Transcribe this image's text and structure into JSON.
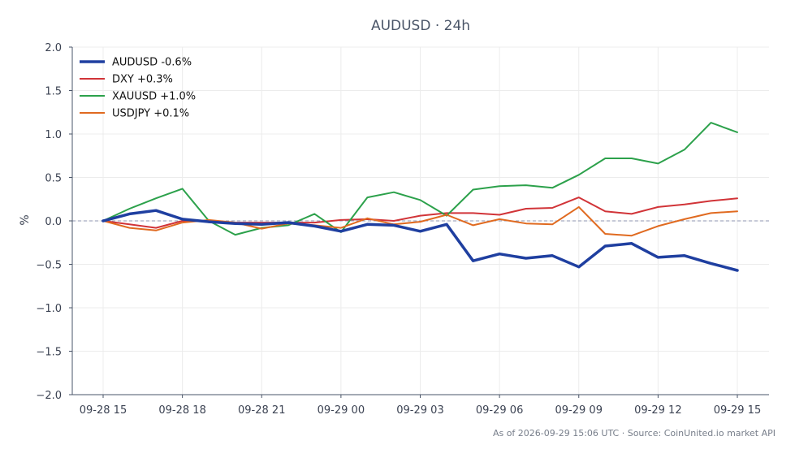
{
  "chart_data": {
    "type": "line",
    "title": "AUDUSD · 24h",
    "xlabel": "",
    "ylabel": "%",
    "ylim": [
      -2.0,
      2.0
    ],
    "yticks": [
      "2.0",
      "1.5",
      "1.0",
      "0.5",
      "0.0",
      "−0.5",
      "−1.0",
      "−1.5",
      "−2.0"
    ],
    "ytick_values": [
      2.0,
      1.5,
      1.0,
      0.5,
      0.0,
      -0.5,
      -1.0,
      -1.5,
      -2.0
    ],
    "x": [
      "2026-09-28 15:00",
      "2026-09-28 16:00",
      "2026-09-28 17:00",
      "2026-09-28 18:00",
      "2026-09-28 19:00",
      "2026-09-28 20:00",
      "2026-09-28 21:00",
      "2026-09-28 22:00",
      "2026-09-28 23:00",
      "2026-09-29 00:00",
      "2026-09-29 01:00",
      "2026-09-29 02:00",
      "2026-09-29 03:00",
      "2026-09-29 04:00",
      "2026-09-29 05:00",
      "2026-09-29 06:00",
      "2026-09-29 07:00",
      "2026-09-29 08:00",
      "2026-09-29 09:00",
      "2026-09-29 10:00",
      "2026-09-29 11:00",
      "2026-09-29 12:00",
      "2026-09-29 13:00",
      "2026-09-29 14:00",
      "2026-09-29 15:00"
    ],
    "xticks": [
      "09-28 15",
      "09-28 18",
      "09-28 21",
      "09-29 00",
      "09-29 03",
      "09-29 06",
      "09-29 09",
      "09-29 12",
      "09-29 15"
    ],
    "xtick_index": [
      0,
      3,
      6,
      9,
      12,
      15,
      18,
      21,
      24
    ],
    "reference_line": 0.0,
    "grid": true,
    "legend_position": "top-left",
    "series": [
      {
        "name": "AUDUSD -0.6%",
        "color": "#1f3fa0",
        "values": [
          0.0,
          0.08,
          0.12,
          0.02,
          -0.01,
          -0.03,
          -0.04,
          -0.02,
          -0.06,
          -0.12,
          -0.04,
          -0.05,
          -0.12,
          -0.04,
          -0.46,
          -0.38,
          -0.43,
          -0.4,
          -0.53,
          -0.29,
          -0.26,
          -0.42,
          -0.4,
          -0.49,
          -0.57
        ]
      },
      {
        "name": "DXY +0.3%",
        "color": "#d13438",
        "values": [
          0.0,
          -0.04,
          -0.08,
          0.0,
          0.0,
          -0.02,
          -0.02,
          -0.02,
          -0.02,
          0.01,
          0.02,
          0.0,
          0.06,
          0.09,
          0.09,
          0.07,
          0.14,
          0.15,
          0.27,
          0.11,
          0.08,
          0.16,
          0.19,
          0.23,
          0.26
        ]
      },
      {
        "name": "XAUUSD +1.0%",
        "color": "#2ca14b",
        "values": [
          0.0,
          0.14,
          0.26,
          0.37,
          0.0,
          -0.16,
          -0.08,
          -0.05,
          0.08,
          -0.13,
          0.27,
          0.33,
          0.24,
          0.06,
          0.36,
          0.4,
          0.41,
          0.38,
          0.53,
          0.72,
          0.72,
          0.66,
          0.82,
          1.13,
          1.02
        ]
      },
      {
        "name": "USDJPY +0.1%",
        "color": "#e06a20",
        "values": [
          0.0,
          -0.08,
          -0.11,
          -0.02,
          0.01,
          -0.02,
          -0.09,
          -0.03,
          -0.05,
          -0.08,
          0.03,
          -0.04,
          -0.01,
          0.07,
          -0.05,
          0.02,
          -0.03,
          -0.04,
          0.16,
          -0.15,
          -0.17,
          -0.06,
          0.02,
          0.09,
          0.11
        ]
      }
    ]
  },
  "footer": "As of 2026-09-29 15:06 UTC · Source: CoinUnited.io market API"
}
